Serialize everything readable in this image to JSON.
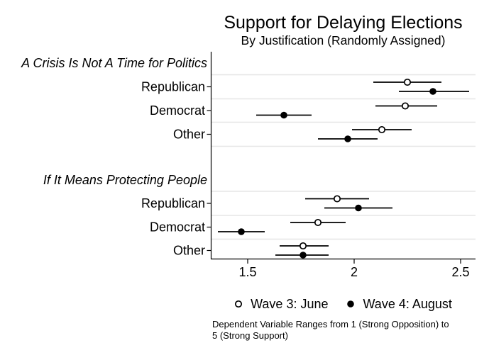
{
  "page": {
    "background": "#ffffff"
  },
  "chart_data": {
    "type": "scatter",
    "style": "horizontal dot-and-CI coefficient plot (two markers per category row)",
    "title": "Support for Delaying Elections",
    "subtitle": "By Justification (Randomly Assigned)",
    "xlabel": "",
    "ylabel": "",
    "xlim": [
      1.33,
      2.57
    ],
    "x_ticks": [
      1.5,
      2,
      2.5
    ],
    "x_tick_labels": [
      "1.5",
      "2",
      "2.5"
    ],
    "grid": "horizontal category separators",
    "legend_position": "bottom-center",
    "groups": [
      {
        "header": "A Crisis Is Not A Time for Politics",
        "rows": [
          {
            "label": "Republican",
            "wave3": {
              "est": 2.25,
              "lo": 2.09,
              "hi": 2.41
            },
            "wave4": {
              "est": 2.37,
              "lo": 2.21,
              "hi": 2.54
            }
          },
          {
            "label": "Democrat",
            "wave3": {
              "est": 2.24,
              "lo": 2.1,
              "hi": 2.39
            },
            "wave4": {
              "est": 1.67,
              "lo": 1.54,
              "hi": 1.8
            }
          },
          {
            "label": "Other",
            "wave3": {
              "est": 2.13,
              "lo": 1.99,
              "hi": 2.27
            },
            "wave4": {
              "est": 1.97,
              "lo": 1.83,
              "hi": 2.11
            }
          }
        ]
      },
      {
        "header": "If It Means Protecting People",
        "rows": [
          {
            "label": "Republican",
            "wave3": {
              "est": 1.92,
              "lo": 1.77,
              "hi": 2.07
            },
            "wave4": {
              "est": 2.02,
              "lo": 1.86,
              "hi": 2.18
            }
          },
          {
            "label": "Democrat",
            "wave3": {
              "est": 1.83,
              "lo": 1.7,
              "hi": 1.96
            },
            "wave4": {
              "est": 1.47,
              "lo": 1.36,
              "hi": 1.58
            }
          },
          {
            "label": "Other",
            "wave3": {
              "est": 1.76,
              "lo": 1.65,
              "hi": 1.88
            },
            "wave4": {
              "est": 1.76,
              "lo": 1.63,
              "hi": 1.88
            }
          }
        ]
      }
    ],
    "legend": [
      {
        "label": "Wave 3: June",
        "marker": "open-circle"
      },
      {
        "label": "Wave 4: August",
        "marker": "filled-circle"
      }
    ],
    "note_lines": [
      "Dependent Variable Ranges from 1 (Strong Opposition) to",
      "5 (Strong Support)"
    ],
    "colors": {
      "marker": "#000000",
      "marker_open_fill": "#ffffff",
      "grid": "#e6e6e6",
      "axis": "#000000",
      "background": "#ffffff"
    }
  }
}
